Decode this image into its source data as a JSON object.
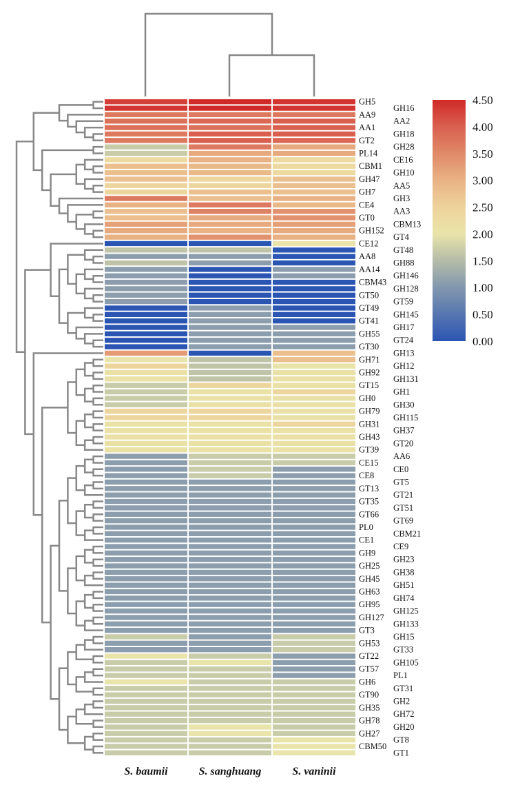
{
  "chart_data": {
    "type": "heatmap",
    "title": "",
    "columns": [
      "S. baumii",
      "S. sanghuang",
      "S. vaninii"
    ],
    "rows": [
      "GH5",
      "GH16",
      "AA9",
      "AA2",
      "AA1",
      "GH18",
      "GT2",
      "GH28",
      "PL14",
      "CE16",
      "CBM1",
      "GH10",
      "GH47",
      "AA5",
      "GH7",
      "GH3",
      "CE4",
      "AA3",
      "GT0",
      "CBM13",
      "GH152",
      "GT4",
      "CE12",
      "GT48",
      "AA8",
      "GH88",
      "AA14",
      "GH146",
      "CBM43",
      "GH128",
      "GT50",
      "GT59",
      "GT49",
      "GH145",
      "GT41",
      "GH17",
      "GH55",
      "GT24",
      "GT30",
      "GH13",
      "GH71",
      "GH12",
      "GH92",
      "GH131",
      "GT15",
      "GH1",
      "GH0",
      "GH30",
      "GH79",
      "GH115",
      "GH31",
      "GH37",
      "GH43",
      "GT20",
      "GT39",
      "AA6",
      "CE15",
      "CE0",
      "CE8",
      "GT5",
      "GT13",
      "GT21",
      "GT35",
      "GT51",
      "GT66",
      "GT69",
      "PL0",
      "CBM21",
      "CE1",
      "CE9",
      "GH9",
      "GH23",
      "GH25",
      "GH38",
      "GH45",
      "GH51",
      "GH63",
      "GH74",
      "GH95",
      "GH125",
      "GH127",
      "GH133",
      "GT3",
      "GH15",
      "GH53",
      "GT33",
      "GT22",
      "GH105",
      "GT57",
      "PL1",
      "GH6",
      "GT31",
      "GT90",
      "GH2",
      "GH35",
      "GH72",
      "GH78",
      "GH20",
      "GH27",
      "GT8",
      "CBM50",
      "GT1"
    ],
    "values": [
      [
        4.3,
        4.5,
        4.4
      ],
      [
        4.4,
        4.5,
        4.4
      ],
      [
        3.7,
        3.7,
        3.7
      ],
      [
        3.8,
        3.9,
        4.0
      ],
      [
        3.8,
        3.8,
        4.0
      ],
      [
        3.7,
        4.0,
        4.0
      ],
      [
        3.7,
        4.0,
        3.9
      ],
      [
        1.7,
        3.7,
        3.1
      ],
      [
        1.7,
        3.1,
        3.1
      ],
      [
        2.3,
        3.0,
        2.3
      ],
      [
        2.8,
        2.9,
        2.3
      ],
      [
        2.8,
        2.9,
        2.3
      ],
      [
        2.8,
        2.4,
        2.8
      ],
      [
        2.4,
        2.4,
        2.8
      ],
      [
        2.4,
        2.8,
        2.8
      ],
      [
        3.7,
        2.8,
        3.0
      ],
      [
        3.0,
        3.7,
        2.9
      ],
      [
        2.8,
        3.6,
        3.4
      ],
      [
        2.8,
        3.1,
        3.4
      ],
      [
        3.2,
        3.1,
        3.2
      ],
      [
        3.1,
        3.0,
        3.1
      ],
      [
        3.0,
        3.4,
        3.0
      ],
      [
        0,
        0,
        2.0
      ],
      [
        1.6,
        1.6,
        0
      ],
      [
        1.1,
        1.1,
        0
      ],
      [
        1.6,
        1.1,
        0
      ],
      [
        1.1,
        0,
        1.1
      ],
      [
        1.1,
        0,
        1.1
      ],
      [
        1.1,
        0,
        0
      ],
      [
        1.1,
        0,
        0
      ],
      [
        1.1,
        0,
        0
      ],
      [
        1.1,
        0,
        0
      ],
      [
        0,
        1.1,
        0
      ],
      [
        0,
        1.1,
        0
      ],
      [
        0,
        1.1,
        0
      ],
      [
        0,
        1.1,
        1.1
      ],
      [
        0,
        1.1,
        1.1
      ],
      [
        0,
        1.1,
        1.1
      ],
      [
        0,
        1.1,
        1.1
      ],
      [
        3.3,
        0,
        2.8
      ],
      [
        2.0,
        1.6,
        2.8
      ],
      [
        2.4,
        1.6,
        2.0
      ],
      [
        2.1,
        1.6,
        2.1
      ],
      [
        2.1,
        1.6,
        2.1
      ],
      [
        1.7,
        2.4,
        2.1
      ],
      [
        1.7,
        2.1,
        2.4
      ],
      [
        1.7,
        2.1,
        2.1
      ],
      [
        1.7,
        2.1,
        2.1
      ],
      [
        2.4,
        2.4,
        2.1
      ],
      [
        2.4,
        2.4,
        2.1
      ],
      [
        2.1,
        2.1,
        2.4
      ],
      [
        2.1,
        2.1,
        2.1
      ],
      [
        2.1,
        2.1,
        2.1
      ],
      [
        2.1,
        2.1,
        2.1
      ],
      [
        2.1,
        2.1,
        2.1
      ],
      [
        1.1,
        1.7,
        1.7
      ],
      [
        1.1,
        1.7,
        1.7
      ],
      [
        1.1,
        1.7,
        1.1
      ],
      [
        1.1,
        1.7,
        1.1
      ],
      [
        1.1,
        1.1,
        1.1
      ],
      [
        1.1,
        1.1,
        1.1
      ],
      [
        1.1,
        1.1,
        1.1
      ],
      [
        1.1,
        1.1,
        1.1
      ],
      [
        1.1,
        1.1,
        1.1
      ],
      [
        1.1,
        1.1,
        1.1
      ],
      [
        1.1,
        1.1,
        1.1
      ],
      [
        1.1,
        1.1,
        1.1
      ],
      [
        1.1,
        1.1,
        1.1
      ],
      [
        1.1,
        1.1,
        1.1
      ],
      [
        1.1,
        1.1,
        1.1
      ],
      [
        1.1,
        1.1,
        1.1
      ],
      [
        1.1,
        1.1,
        1.1
      ],
      [
        1.1,
        1.1,
        1.1
      ],
      [
        1.1,
        1.1,
        1.1
      ],
      [
        1.1,
        1.1,
        1.1
      ],
      [
        1.1,
        1.1,
        1.1
      ],
      [
        1.1,
        1.1,
        1.1
      ],
      [
        1.1,
        1.1,
        1.1
      ],
      [
        1.1,
        1.1,
        1.1
      ],
      [
        1.1,
        1.1,
        1.1
      ],
      [
        1.1,
        1.1,
        1.1
      ],
      [
        1.1,
        1.1,
        1.1
      ],
      [
        1.1,
        1.1,
        1.1
      ],
      [
        1.7,
        1.1,
        1.7
      ],
      [
        1.1,
        1.1,
        1.7
      ],
      [
        1.1,
        1.1,
        1.7
      ],
      [
        2.0,
        1.7,
        1.1
      ],
      [
        1.7,
        2.0,
        1.1
      ],
      [
        1.7,
        1.7,
        1.1
      ],
      [
        1.7,
        1.7,
        1.1
      ],
      [
        2.0,
        1.7,
        1.7
      ],
      [
        1.7,
        1.7,
        1.7
      ],
      [
        1.7,
        1.7,
        1.7
      ],
      [
        1.7,
        1.7,
        1.7
      ],
      [
        1.7,
        1.7,
        1.7
      ],
      [
        1.7,
        1.7,
        1.7
      ],
      [
        1.7,
        1.7,
        1.7
      ],
      [
        1.7,
        2.0,
        1.7
      ],
      [
        1.7,
        2.0,
        1.7
      ],
      [
        1.7,
        1.7,
        2.0
      ],
      [
        1.7,
        1.7,
        2.0
      ],
      [
        1.7,
        1.7,
        2.0
      ]
    ],
    "colorbar": {
      "range": [
        0,
        4.5
      ],
      "ticks": [
        "4.50",
        "4.00",
        "3.50",
        "3.00",
        "2.50",
        "2.00",
        "1.50",
        "1.00",
        "0.50",
        "0.00"
      ],
      "stops": [
        {
          "v": 0.0,
          "c": "#2b55b3"
        },
        {
          "v": 1.0,
          "c": "#8297ae"
        },
        {
          "v": 1.5,
          "c": "#b4bca8"
        },
        {
          "v": 2.0,
          "c": "#e9e4aa"
        },
        {
          "v": 2.5,
          "c": "#eed39b"
        },
        {
          "v": 3.0,
          "c": "#e9b285"
        },
        {
          "v": 3.5,
          "c": "#e08a68"
        },
        {
          "v": 4.0,
          "c": "#d9604f"
        },
        {
          "v": 4.5,
          "c": "#d02a28"
        }
      ]
    },
    "dendrogram_color": "#888888"
  }
}
